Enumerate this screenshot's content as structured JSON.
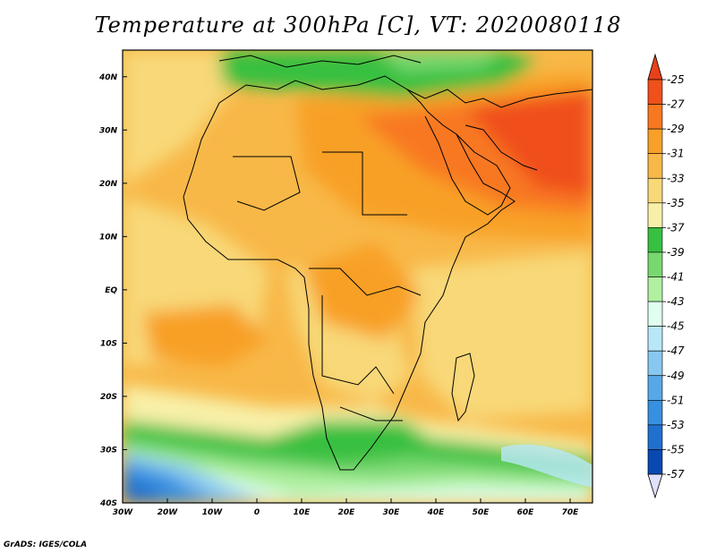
{
  "title": "Temperature at 300hPa [C], VT: 2020080118",
  "credit": "GrADS: IGES/COLA",
  "map": {
    "lon_range": [
      -30,
      75
    ],
    "lat_range": [
      -40,
      45
    ],
    "lat_ticks": [
      {
        "value": 40,
        "label": "40N"
      },
      {
        "value": 30,
        "label": "30N"
      },
      {
        "value": 20,
        "label": "20N"
      },
      {
        "value": 10,
        "label": "10N"
      },
      {
        "value": 0,
        "label": "EQ"
      },
      {
        "value": -10,
        "label": "10S"
      },
      {
        "value": -20,
        "label": "20S"
      },
      {
        "value": -30,
        "label": "30S"
      },
      {
        "value": -40,
        "label": "40S"
      }
    ],
    "lon_ticks": [
      {
        "value": -30,
        "label": "30W"
      },
      {
        "value": -20,
        "label": "20W"
      },
      {
        "value": -10,
        "label": "10W"
      },
      {
        "value": 0,
        "label": "0"
      },
      {
        "value": 10,
        "label": "10E"
      },
      {
        "value": 20,
        "label": "20E"
      },
      {
        "value": 30,
        "label": "30E"
      },
      {
        "value": 40,
        "label": "40E"
      },
      {
        "value": 50,
        "label": "50E"
      },
      {
        "value": 60,
        "label": "60E"
      },
      {
        "value": 70,
        "label": "70E"
      }
    ]
  },
  "colorbar": {
    "levels": [
      "-25",
      "-27",
      "-29",
      "-31",
      "-33",
      "-35",
      "-37",
      "-39",
      "-41",
      "-43",
      "-45",
      "-47",
      "-49",
      "-51",
      "-53",
      "-55",
      "-57"
    ],
    "colors": [
      "#f0501a",
      "#f87820",
      "#f8a028",
      "#f8b848",
      "#f8d878",
      "#f8f0a8",
      "#38c040",
      "#78d870",
      "#b0f0a0",
      "#e0fff0",
      "#b8e8f8",
      "#88c8f0",
      "#58a8e8",
      "#3890e0",
      "#2070d0",
      "#0848b0",
      "#002080"
    ],
    "top_color": "#e8401a",
    "bottom_color": "#e0e0ff"
  }
}
